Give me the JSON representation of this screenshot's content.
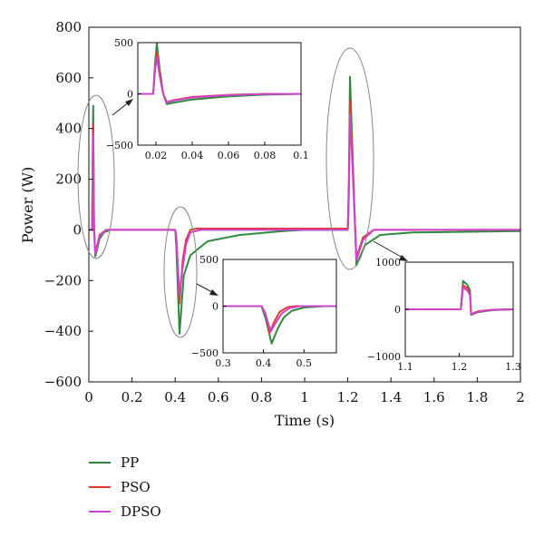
{
  "chart_data": {
    "type": "line",
    "xlabel": "Time (s)",
    "ylabel": "Power (W)",
    "xlim": [
      0,
      2
    ],
    "ylim": [
      -600,
      800
    ],
    "xticks": [
      0,
      0.2,
      0.4,
      0.6,
      0.8,
      1,
      1.2,
      1.4,
      1.6,
      1.8,
      2
    ],
    "xtick_labels": [
      "0",
      "0.2",
      "0.4",
      "0.6",
      "0.8",
      "1",
      "1.2",
      "1.4",
      "1.6",
      "1.8",
      "2"
    ],
    "yticks": [
      800,
      600,
      400,
      200,
      0,
      -200,
      -400,
      -600
    ],
    "ytick_labels": [
      "800",
      "600",
      "400",
      "200",
      "0",
      "−200",
      "−400",
      "−600"
    ],
    "grid": false,
    "legend_position": "bottom-left",
    "series": [
      {
        "name": "PP",
        "color": "#2e8b3e",
        "points": [
          [
            0,
            0
          ],
          [
            0.015,
            0
          ],
          [
            0.018,
            330
          ],
          [
            0.02,
            490
          ],
          [
            0.024,
            20
          ],
          [
            0.03,
            -105
          ],
          [
            0.05,
            -35
          ],
          [
            0.07,
            -10
          ],
          [
            0.1,
            0
          ],
          [
            0.4,
            0
          ],
          [
            0.405,
            -60
          ],
          [
            0.42,
            -410
          ],
          [
            0.44,
            -180
          ],
          [
            0.47,
            -100
          ],
          [
            0.55,
            -45
          ],
          [
            0.7,
            -20
          ],
          [
            0.9,
            -5
          ],
          [
            1.0,
            0
          ],
          [
            1.2,
            0
          ],
          [
            1.205,
            200
          ],
          [
            1.21,
            605
          ],
          [
            1.22,
            350
          ],
          [
            1.24,
            -140
          ],
          [
            1.28,
            -60
          ],
          [
            1.35,
            -20
          ],
          [
            1.5,
            -10
          ],
          [
            2,
            -5
          ]
        ]
      },
      {
        "name": "PSO",
        "color": "#e53935",
        "points": [
          [
            0,
            0
          ],
          [
            0.015,
            0
          ],
          [
            0.018,
            270
          ],
          [
            0.02,
            415
          ],
          [
            0.024,
            0
          ],
          [
            0.03,
            -90
          ],
          [
            0.05,
            -20
          ],
          [
            0.08,
            0
          ],
          [
            0.4,
            0
          ],
          [
            0.405,
            -20
          ],
          [
            0.42,
            -290
          ],
          [
            0.435,
            -120
          ],
          [
            0.45,
            -40
          ],
          [
            0.47,
            0
          ],
          [
            0.5,
            5
          ],
          [
            1.2,
            5
          ],
          [
            1.205,
            150
          ],
          [
            1.21,
            510
          ],
          [
            1.22,
            300
          ],
          [
            1.24,
            -110
          ],
          [
            1.27,
            -30
          ],
          [
            1.32,
            0
          ],
          [
            2,
            0
          ]
        ]
      },
      {
        "name": "DPSO",
        "color": "#cc44cc",
        "points": [
          [
            0,
            0
          ],
          [
            0.015,
            0
          ],
          [
            0.018,
            250
          ],
          [
            0.02,
            380
          ],
          [
            0.024,
            0
          ],
          [
            0.03,
            -95
          ],
          [
            0.05,
            -25
          ],
          [
            0.08,
            0
          ],
          [
            0.4,
            0
          ],
          [
            0.405,
            -30
          ],
          [
            0.42,
            -255
          ],
          [
            0.435,
            -150
          ],
          [
            0.45,
            -60
          ],
          [
            0.47,
            -10
          ],
          [
            0.52,
            0
          ],
          [
            1.2,
            0
          ],
          [
            1.205,
            140
          ],
          [
            1.21,
            455
          ],
          [
            1.22,
            280
          ],
          [
            1.24,
            -120
          ],
          [
            1.27,
            -40
          ],
          [
            1.32,
            0
          ],
          [
            2,
            0
          ]
        ]
      }
    ],
    "insets": [
      {
        "xlim": [
          0.01,
          0.1
        ],
        "ylim": [
          -500,
          500
        ],
        "xticks": [
          0.02,
          0.04,
          0.06,
          0.08,
          0.1
        ],
        "xtick_labels": [
          "0.02",
          "0.04",
          "0.06",
          "0.08",
          "0.1"
        ],
        "yticks": [
          500,
          0,
          -500
        ],
        "ytick_labels": [
          "500",
          "0",
          "−500"
        ],
        "series": [
          {
            "color": "#2e8b3e",
            "points": [
              [
                0.01,
                0
              ],
              [
                0.0185,
                0
              ],
              [
                0.0195,
                300
              ],
              [
                0.0205,
                490
              ],
              [
                0.022,
                250
              ],
              [
                0.024,
                0
              ],
              [
                0.026,
                -100
              ],
              [
                0.03,
                -85
              ],
              [
                0.04,
                -55
              ],
              [
                0.06,
                -25
              ],
              [
                0.08,
                -8
              ],
              [
                0.1,
                0
              ]
            ]
          },
          {
            "color": "#e53935",
            "points": [
              [
                0.01,
                0
              ],
              [
                0.0185,
                0
              ],
              [
                0.0195,
                250
              ],
              [
                0.0205,
                410
              ],
              [
                0.022,
                200
              ],
              [
                0.024,
                0
              ],
              [
                0.026,
                -80
              ],
              [
                0.03,
                -60
              ],
              [
                0.04,
                -30
              ],
              [
                0.06,
                -10
              ],
              [
                0.08,
                0
              ],
              [
                0.1,
                0
              ]
            ]
          },
          {
            "color": "#cc44cc",
            "points": [
              [
                0.01,
                0
              ],
              [
                0.0185,
                0
              ],
              [
                0.0195,
                230
              ],
              [
                0.0205,
                360
              ],
              [
                0.022,
                180
              ],
              [
                0.024,
                0
              ],
              [
                0.026,
                -85
              ],
              [
                0.03,
                -65
              ],
              [
                0.04,
                -35
              ],
              [
                0.06,
                -12
              ],
              [
                0.08,
                -2
              ],
              [
                0.1,
                0
              ]
            ]
          }
        ]
      },
      {
        "xlim": [
          0.3,
          0.58
        ],
        "ylim": [
          -500,
          500
        ],
        "xticks": [
          0.3,
          0.4,
          0.5
        ],
        "xtick_labels": [
          "0.3",
          "0.4",
          "0.5"
        ],
        "yticks": [
          500,
          0,
          -500
        ],
        "ytick_labels": [
          "500",
          "0",
          "−500"
        ],
        "series": [
          {
            "color": "#2e8b3e",
            "points": [
              [
                0.3,
                0
              ],
              [
                0.395,
                0
              ],
              [
                0.405,
                -130
              ],
              [
                0.42,
                -400
              ],
              [
                0.435,
                -240
              ],
              [
                0.45,
                -120
              ],
              [
                0.47,
                -50
              ],
              [
                0.5,
                -15
              ],
              [
                0.55,
                0
              ],
              [
                0.58,
                0
              ]
            ]
          },
          {
            "color": "#e53935",
            "points": [
              [
                0.3,
                0
              ],
              [
                0.395,
                0
              ],
              [
                0.405,
                -80
              ],
              [
                0.415,
                -290
              ],
              [
                0.425,
                -180
              ],
              [
                0.44,
                -60
              ],
              [
                0.46,
                -10
              ],
              [
                0.48,
                0
              ],
              [
                0.58,
                0
              ]
            ]
          },
          {
            "color": "#cc44cc",
            "points": [
              [
                0.3,
                0
              ],
              [
                0.395,
                0
              ],
              [
                0.405,
                -90
              ],
              [
                0.418,
                -270
              ],
              [
                0.43,
                -180
              ],
              [
                0.445,
                -80
              ],
              [
                0.465,
                -20
              ],
              [
                0.49,
                0
              ],
              [
                0.58,
                0
              ]
            ]
          }
        ]
      },
      {
        "xlim": [
          1.1,
          1.3
        ],
        "ylim": [
          -1000,
          1000
        ],
        "xticks": [
          1.1,
          1.2,
          1.3
        ],
        "xtick_labels": [
          "1.1",
          "1.2",
          "1.3"
        ],
        "yticks": [
          1000,
          0,
          -1000
        ],
        "ytick_labels": [
          "1000",
          "0",
          "−1000"
        ],
        "series": [
          {
            "color": "#2e8b3e",
            "points": [
              [
                1.1,
                0
              ],
              [
                1.203,
                0
              ],
              [
                1.207,
                600
              ],
              [
                1.215,
                520
              ],
              [
                1.22,
                400
              ],
              [
                1.222,
                -120
              ],
              [
                1.235,
                -60
              ],
              [
                1.26,
                -20
              ],
              [
                1.3,
                0
              ]
            ]
          },
          {
            "color": "#e53935",
            "points": [
              [
                1.1,
                0
              ],
              [
                1.203,
                0
              ],
              [
                1.207,
                510
              ],
              [
                1.215,
                450
              ],
              [
                1.22,
                330
              ],
              [
                1.222,
                -100
              ],
              [
                1.235,
                -40
              ],
              [
                1.26,
                -10
              ],
              [
                1.3,
                0
              ]
            ]
          },
          {
            "color": "#cc44cc",
            "points": [
              [
                1.1,
                0
              ],
              [
                1.203,
                0
              ],
              [
                1.207,
                460
              ],
              [
                1.215,
                400
              ],
              [
                1.22,
                300
              ],
              [
                1.222,
                -110
              ],
              [
                1.235,
                -50
              ],
              [
                1.26,
                -15
              ],
              [
                1.3,
                0
              ]
            ]
          }
        ]
      }
    ]
  }
}
